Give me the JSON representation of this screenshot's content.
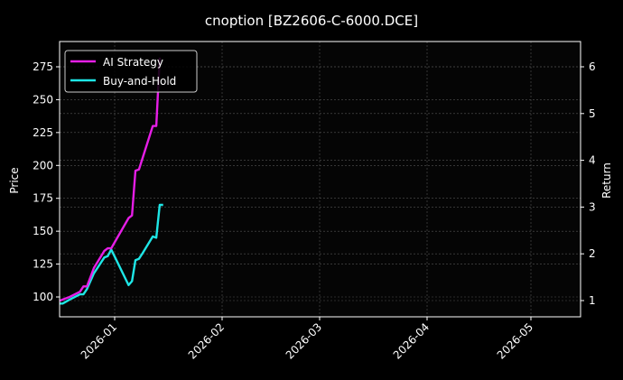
{
  "chart_data": {
    "type": "line",
    "title": "cnoption [BZ2606-C-6000.DCE]",
    "xlabel": "",
    "ylabel": "Price",
    "y2label": "Return",
    "ylim": [
      86,
      290
    ],
    "y2lim": [
      0.63,
      6.46
    ],
    "yticks": [
      100,
      125,
      150,
      175,
      200,
      225,
      250,
      275
    ],
    "y2ticks": [
      1,
      2,
      3,
      4,
      5,
      6
    ],
    "xticks": [
      "2026-01",
      "2026-02",
      "2026-03",
      "2026-04",
      "2026-05"
    ],
    "grid": true,
    "legend_position": "upper left",
    "series": [
      {
        "name": "AI Strategy",
        "color": "#e61ee6",
        "x": [
          "2025-12-16",
          "2025-12-17",
          "2025-12-19",
          "2025-12-22",
          "2025-12-23",
          "2025-12-24",
          "2025-12-26",
          "2025-12-29",
          "2025-12-30",
          "2025-12-31",
          "2026-01-05",
          "2026-01-06",
          "2026-01-07",
          "2026-01-08",
          "2026-01-12",
          "2026-01-13",
          "2026-01-14"
        ],
        "values": [
          97,
          98,
          100,
          104,
          108,
          108,
          122,
          135,
          137,
          137,
          160,
          162,
          196,
          197,
          230,
          230,
          282
        ]
      },
      {
        "name": "Buy-and-Hold",
        "color": "#1ee6e6",
        "x": [
          "2025-12-16",
          "2025-12-17",
          "2025-12-19",
          "2025-12-22",
          "2025-12-23",
          "2025-12-24",
          "2025-12-26",
          "2025-12-29",
          "2025-12-30",
          "2025-12-31",
          "2026-01-05",
          "2026-01-06",
          "2026-01-07",
          "2026-01-08",
          "2026-01-09",
          "2026-01-12",
          "2026-01-13",
          "2026-01-14",
          "2026-01-15"
        ],
        "values": [
          95,
          95,
          98,
          102,
          102,
          106,
          118,
          130,
          131,
          136,
          109,
          112,
          128,
          129,
          133,
          146,
          145,
          170,
          170
        ]
      }
    ]
  },
  "legend": {
    "items": [
      {
        "label": "AI Strategy",
        "color": "#e61ee6"
      },
      {
        "label": "Buy-and-Hold",
        "color": "#1ee6e6"
      }
    ]
  }
}
